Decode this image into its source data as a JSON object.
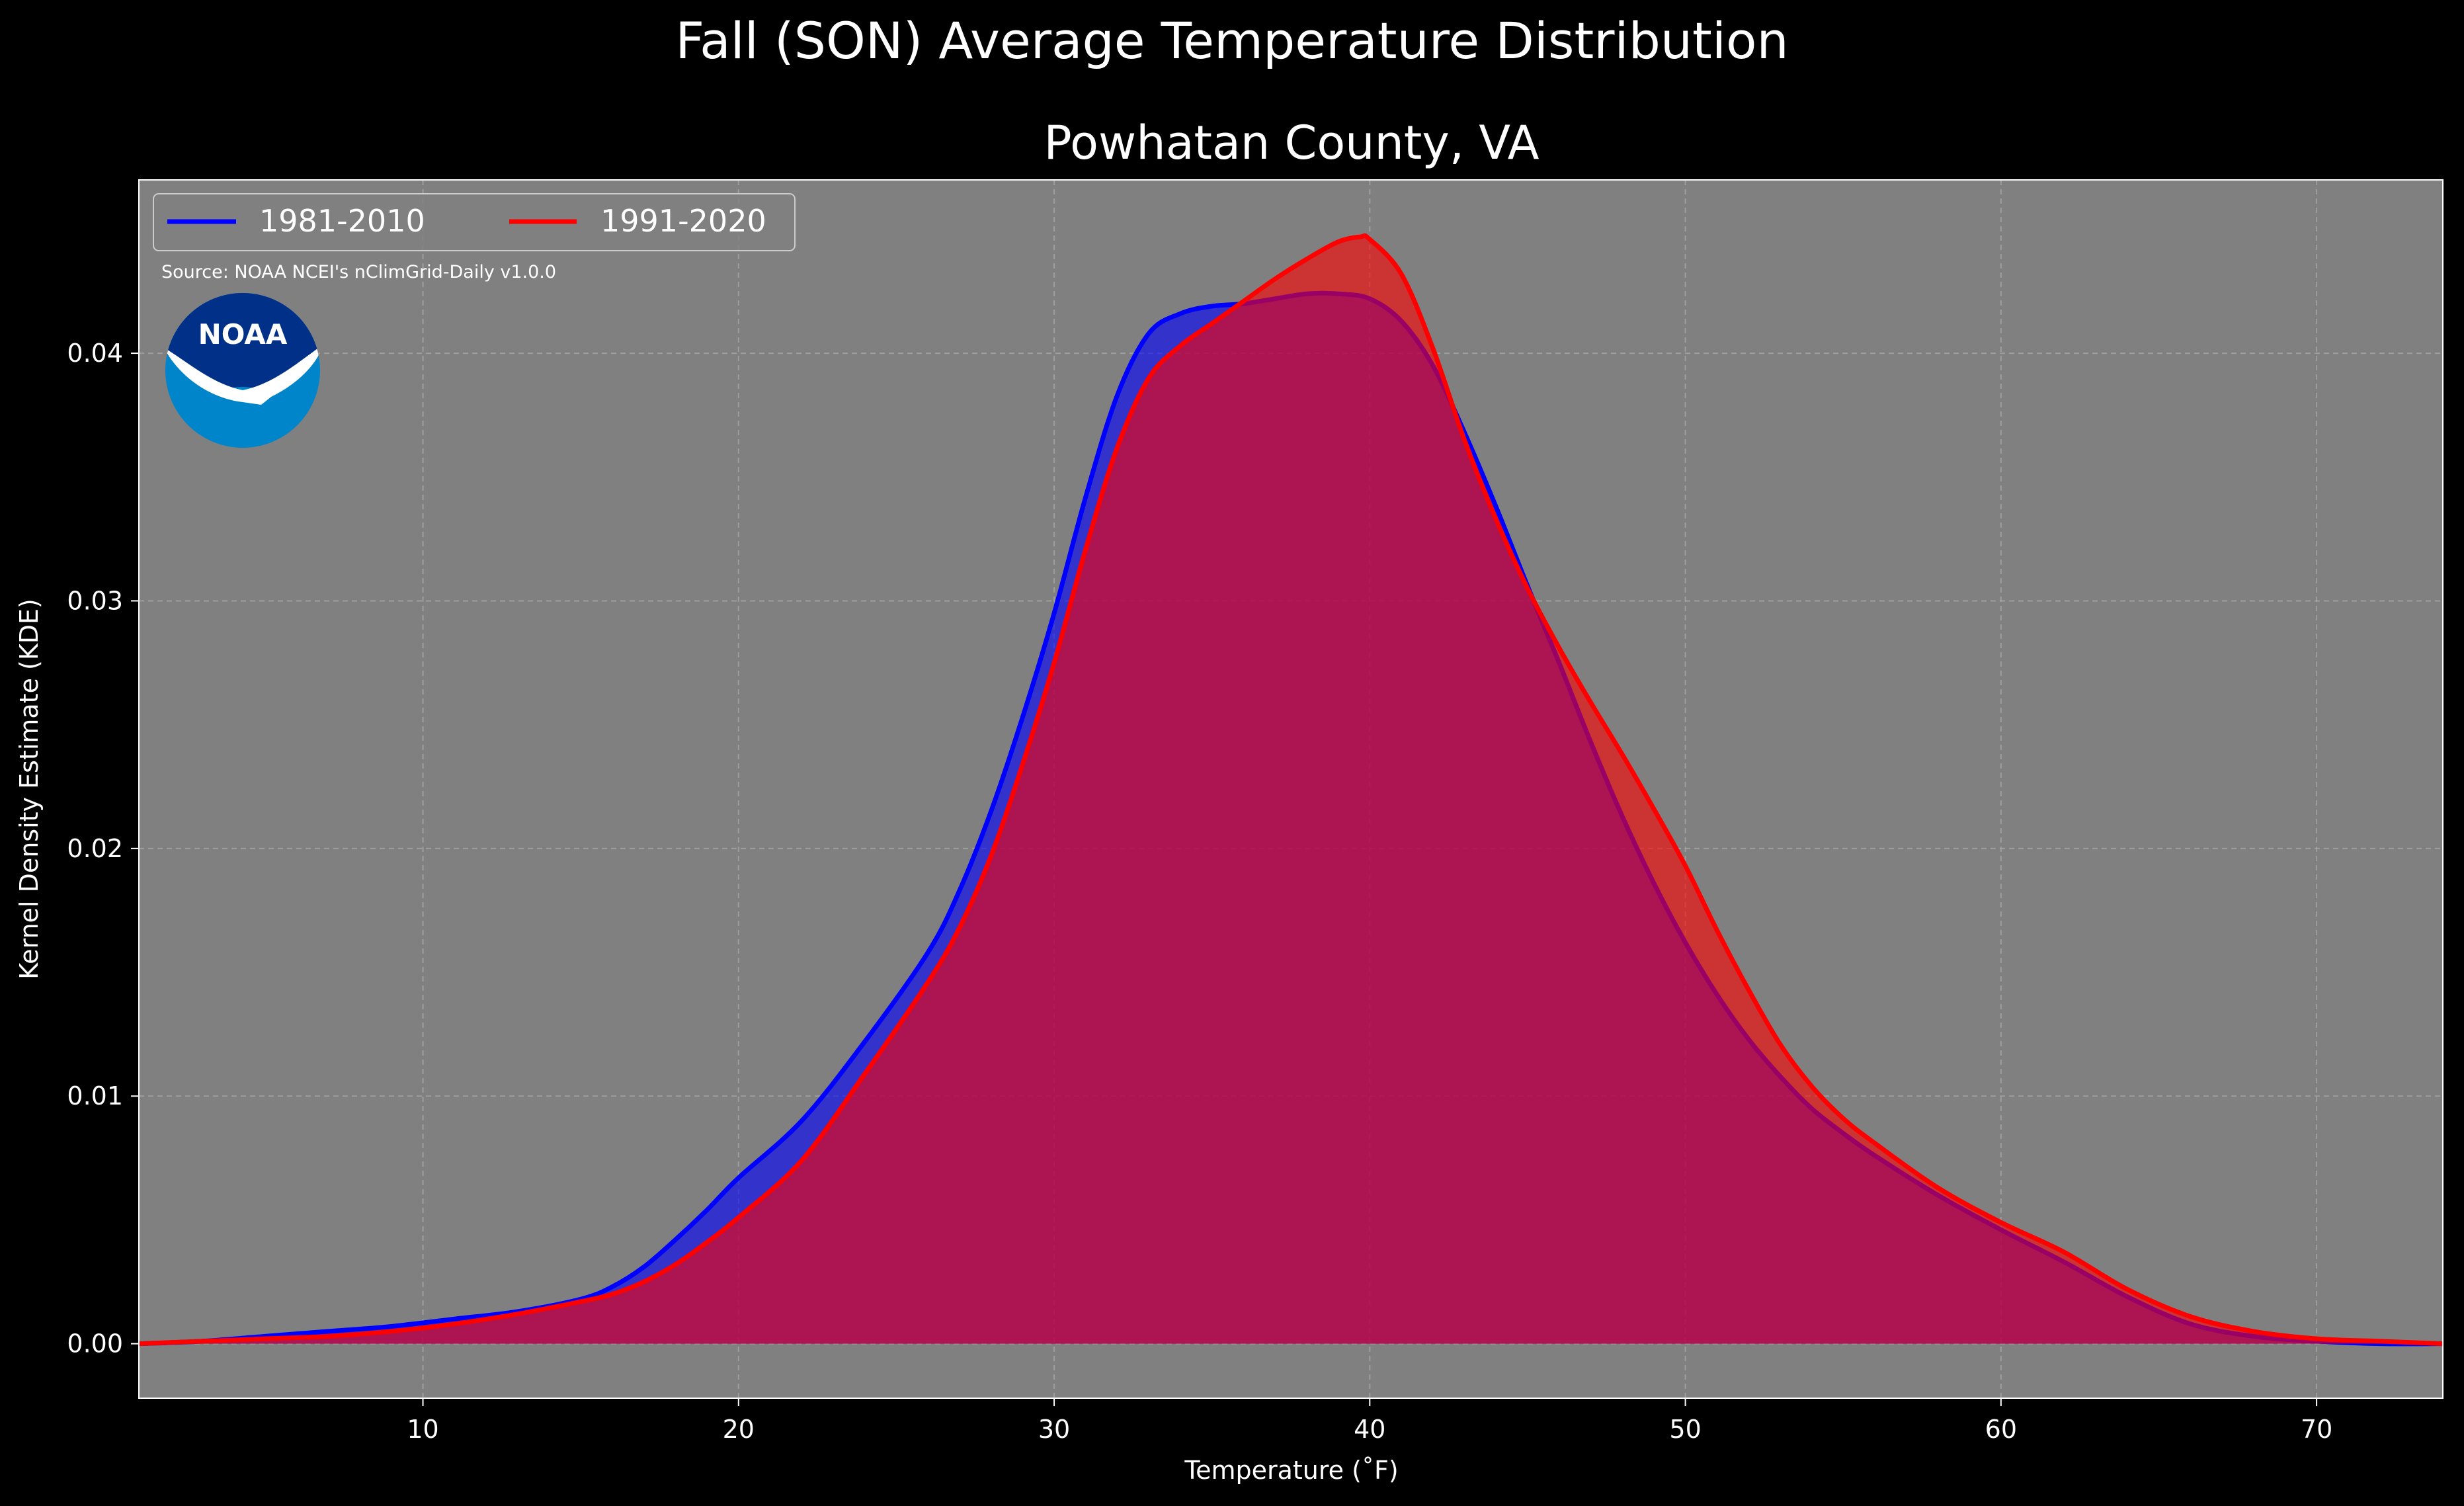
{
  "figure": {
    "suptitle": "Fall (SON) Average Temperature Distribution",
    "source_note": "Source: NOAA NCEI's nClimGrid-Daily v1.0.0",
    "logo_text": "NOAA"
  },
  "colors": {
    "background": "#000000",
    "plot_background": "#808080",
    "grid": "#b3b3b3",
    "series_1981": "#0000ff",
    "series_1991": "#ff0000",
    "noaa_dark": "#003087",
    "noaa_light": "#0085ca"
  },
  "chart_data": {
    "type": "area",
    "title": "Powhatan County, VA",
    "xlabel": "Temperature ($^\\circ$F)",
    "xlabel_display": "Temperature (˚F)",
    "ylabel": "Kernel Density Estimate (KDE)",
    "xlim": [
      1,
      74
    ],
    "ylim": [
      -0.0022,
      0.047
    ],
    "xticks": [
      10,
      20,
      30,
      40,
      50,
      60,
      70
    ],
    "xtick_labels": [
      "10",
      "20",
      "30",
      "40",
      "50",
      "60",
      "70"
    ],
    "yticks": [
      0.0,
      0.01,
      0.02,
      0.03,
      0.04
    ],
    "ytick_labels": [
      "0.00",
      "0.01",
      "0.02",
      "0.03",
      "0.04"
    ],
    "grid": true,
    "legend_placement": "upper-left",
    "legend_columns": 2,
    "series": [
      {
        "name": "1981-2010",
        "color": "#0000ff",
        "x": [
          1,
          3,
          5,
          7,
          9,
          11,
          13,
          15,
          16,
          17,
          18,
          19,
          20,
          22,
          24,
          26,
          27,
          28,
          29,
          30,
          31,
          32,
          33,
          34,
          35,
          36,
          37,
          38,
          39,
          40,
          41,
          42,
          43,
          44,
          45,
          46,
          47,
          48,
          49,
          50,
          51,
          52,
          53,
          54,
          55,
          56,
          58,
          60,
          62,
          64,
          66,
          68,
          70,
          72,
          74
        ],
        "y": [
          0.0,
          0.0001,
          0.0003,
          0.0005,
          0.0007,
          0.001,
          0.0013,
          0.0018,
          0.0023,
          0.0031,
          0.0042,
          0.0054,
          0.0067,
          0.009,
          0.0122,
          0.0158,
          0.0183,
          0.0215,
          0.0253,
          0.0295,
          0.0342,
          0.0383,
          0.0408,
          0.0416,
          0.0419,
          0.042,
          0.0422,
          0.0424,
          0.0424,
          0.0422,
          0.0413,
          0.0395,
          0.0368,
          0.0338,
          0.0306,
          0.0275,
          0.0243,
          0.0213,
          0.0186,
          0.0162,
          0.0141,
          0.0123,
          0.0108,
          0.0095,
          0.0085,
          0.0076,
          0.006,
          0.0046,
          0.0033,
          0.0019,
          0.0008,
          0.0003,
          0.0001,
          0.0,
          0.0
        ]
      },
      {
        "name": "1991-2020",
        "color": "#ff0000",
        "x": [
          1,
          3,
          5,
          7,
          9,
          11,
          13,
          15,
          16,
          17,
          18,
          19,
          20,
          22,
          24,
          26,
          27,
          28,
          29,
          30,
          31,
          32,
          33,
          34,
          35,
          36,
          37,
          38,
          39,
          39.7,
          40,
          41,
          42,
          43,
          44,
          45,
          46,
          47,
          48,
          49,
          50,
          51,
          52,
          53,
          54,
          55,
          56,
          58,
          60,
          62,
          64,
          66,
          68,
          70,
          72,
          74
        ],
        "y": [
          0.0,
          0.0001,
          0.0002,
          0.0003,
          0.0005,
          0.0008,
          0.0012,
          0.0017,
          0.002,
          0.0025,
          0.0032,
          0.0041,
          0.0051,
          0.0074,
          0.0109,
          0.0146,
          0.0168,
          0.0197,
          0.0234,
          0.0275,
          0.0321,
          0.0362,
          0.039,
          0.0403,
          0.0412,
          0.0421,
          0.043,
          0.0438,
          0.0445,
          0.0447,
          0.0446,
          0.0432,
          0.0402,
          0.0365,
          0.0333,
          0.0305,
          0.0281,
          0.0259,
          0.0238,
          0.0216,
          0.0193,
          0.0167,
          0.0143,
          0.0121,
          0.0104,
          0.0091,
          0.0081,
          0.0063,
          0.0049,
          0.0037,
          0.0022,
          0.0011,
          0.0005,
          0.0002,
          0.0001,
          0.0
        ]
      }
    ]
  }
}
